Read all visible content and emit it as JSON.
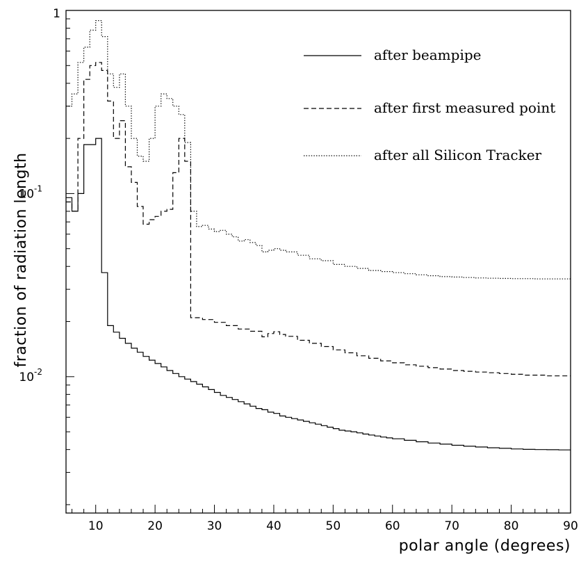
{
  "chart_data": {
    "type": "line",
    "xlabel": "polar angle (degrees)",
    "ylabel": "fraction of radiation length",
    "xlim": [
      5,
      90
    ],
    "ylim": [
      0.0018,
      1
    ],
    "yscale": "log",
    "grid": false,
    "legend_position": "top-right",
    "x_ticks": [
      {
        "value": 10,
        "label": "10"
      },
      {
        "value": 20,
        "label": "20"
      },
      {
        "value": 30,
        "label": "30"
      },
      {
        "value": 40,
        "label": "40"
      },
      {
        "value": 50,
        "label": "50"
      },
      {
        "value": 60,
        "label": "60"
      },
      {
        "value": 70,
        "label": "70"
      },
      {
        "value": 80,
        "label": "80"
      },
      {
        "value": 90,
        "label": "90"
      }
    ],
    "y_tick_labels": [
      {
        "value": 1,
        "base": "1",
        "exp": ""
      },
      {
        "value": 0.1,
        "base": "10",
        "exp": "-1"
      },
      {
        "value": 0.01,
        "base": "10",
        "exp": "-2"
      }
    ],
    "series": [
      {
        "name": "after beampipe",
        "style": "solid",
        "points": [
          [
            5,
            0.095
          ],
          [
            6,
            0.08
          ],
          [
            7,
            0.1
          ],
          [
            8,
            0.185
          ],
          [
            10,
            0.2
          ],
          [
            11,
            0.037
          ],
          [
            12,
            0.019
          ],
          [
            13,
            0.0175
          ],
          [
            14,
            0.0162
          ],
          [
            15,
            0.0152
          ],
          [
            16,
            0.0143
          ],
          [
            17,
            0.0136
          ],
          [
            18,
            0.0129
          ],
          [
            19,
            0.0123
          ],
          [
            20,
            0.0118
          ],
          [
            21,
            0.0113
          ],
          [
            22,
            0.0108
          ],
          [
            23,
            0.0104
          ],
          [
            24,
            0.01
          ],
          [
            25,
            0.0097
          ],
          [
            26,
            0.0094
          ],
          [
            27,
            0.0091
          ],
          [
            28,
            0.0088
          ],
          [
            29,
            0.0085
          ],
          [
            30,
            0.0082
          ],
          [
            31,
            0.0079
          ],
          [
            32,
            0.0077
          ],
          [
            33,
            0.0075
          ],
          [
            34,
            0.0073
          ],
          [
            35,
            0.0071
          ],
          [
            36,
            0.0069
          ],
          [
            37,
            0.0067
          ],
          [
            38,
            0.0066
          ],
          [
            39,
            0.0064
          ],
          [
            40,
            0.0063
          ],
          [
            41,
            0.0061
          ],
          [
            42,
            0.006
          ],
          [
            43,
            0.0059
          ],
          [
            44,
            0.0058
          ],
          [
            45,
            0.0057
          ],
          [
            46,
            0.0056
          ],
          [
            47,
            0.0055
          ],
          [
            48,
            0.0054
          ],
          [
            49,
            0.0053
          ],
          [
            50,
            0.0052
          ],
          [
            51,
            0.0051
          ],
          [
            52,
            0.00505
          ],
          [
            53,
            0.005
          ],
          [
            54,
            0.00493
          ],
          [
            55,
            0.00486
          ],
          [
            56,
            0.0048
          ],
          [
            57,
            0.00474
          ],
          [
            58,
            0.00468
          ],
          [
            59,
            0.00463
          ],
          [
            60,
            0.00458
          ],
          [
            62,
            0.00449
          ],
          [
            64,
            0.00441
          ],
          [
            66,
            0.00434
          ],
          [
            68,
            0.00428
          ],
          [
            70,
            0.00422
          ],
          [
            72,
            0.00417
          ],
          [
            74,
            0.00413
          ],
          [
            76,
            0.00409
          ],
          [
            78,
            0.00406
          ],
          [
            80,
            0.00403
          ],
          [
            82,
            0.00401
          ],
          [
            84,
            0.004
          ],
          [
            86,
            0.00399
          ],
          [
            88,
            0.00398
          ],
          [
            90,
            0.00398
          ]
        ]
      },
      {
        "name": "after first measured point",
        "style": "dashed",
        "points": [
          [
            5,
            0.09
          ],
          [
            6,
            0.08
          ],
          [
            7,
            0.2
          ],
          [
            8,
            0.42
          ],
          [
            9,
            0.5
          ],
          [
            10,
            0.52
          ],
          [
            11,
            0.47
          ],
          [
            12,
            0.32
          ],
          [
            13,
            0.2
          ],
          [
            14,
            0.25
          ],
          [
            15,
            0.14
          ],
          [
            16,
            0.115
          ],
          [
            17,
            0.085
          ],
          [
            18,
            0.068
          ],
          [
            19,
            0.072
          ],
          [
            20,
            0.075
          ],
          [
            21,
            0.08
          ],
          [
            22,
            0.082
          ],
          [
            23,
            0.13
          ],
          [
            24,
            0.2
          ],
          [
            25,
            0.15
          ],
          [
            26,
            0.021
          ],
          [
            28,
            0.0205
          ],
          [
            30,
            0.0198
          ],
          [
            32,
            0.019
          ],
          [
            34,
            0.0182
          ],
          [
            36,
            0.0177
          ],
          [
            38,
            0.0165
          ],
          [
            39,
            0.0172
          ],
          [
            40,
            0.0176
          ],
          [
            41,
            0.017
          ],
          [
            42,
            0.0166
          ],
          [
            44,
            0.0158
          ],
          [
            46,
            0.0152
          ],
          [
            48,
            0.0146
          ],
          [
            50,
            0.014
          ],
          [
            52,
            0.0135
          ],
          [
            54,
            0.013
          ],
          [
            56,
            0.0126
          ],
          [
            58,
            0.0122
          ],
          [
            60,
            0.0119
          ],
          [
            62,
            0.0116
          ],
          [
            64,
            0.0114
          ],
          [
            66,
            0.0112
          ],
          [
            68,
            0.011
          ],
          [
            70,
            0.0108
          ],
          [
            72,
            0.0107
          ],
          [
            74,
            0.0106
          ],
          [
            76,
            0.0105
          ],
          [
            78,
            0.0104
          ],
          [
            80,
            0.0103
          ],
          [
            82,
            0.0102
          ],
          [
            84,
            0.0102
          ],
          [
            86,
            0.0101
          ],
          [
            88,
            0.0101
          ],
          [
            90,
            0.0101
          ]
        ]
      },
      {
        "name": "after all Silicon Tracker",
        "style": "dotted",
        "points": [
          [
            5,
            0.3
          ],
          [
            6,
            0.35
          ],
          [
            7,
            0.52
          ],
          [
            8,
            0.63
          ],
          [
            9,
            0.78
          ],
          [
            10,
            0.88
          ],
          [
            11,
            0.72
          ],
          [
            12,
            0.45
          ],
          [
            13,
            0.38
          ],
          [
            14,
            0.45
          ],
          [
            15,
            0.3
          ],
          [
            16,
            0.2
          ],
          [
            17,
            0.16
          ],
          [
            18,
            0.15
          ],
          [
            19,
            0.2
          ],
          [
            20,
            0.3
          ],
          [
            21,
            0.35
          ],
          [
            22,
            0.33
          ],
          [
            23,
            0.3
          ],
          [
            24,
            0.27
          ],
          [
            25,
            0.19
          ],
          [
            26,
            0.08
          ],
          [
            27,
            0.066
          ],
          [
            28,
            0.067
          ],
          [
            29,
            0.064
          ],
          [
            30,
            0.062
          ],
          [
            31,
            0.063
          ],
          [
            32,
            0.06
          ],
          [
            33,
            0.058
          ],
          [
            34,
            0.055
          ],
          [
            35,
            0.056
          ],
          [
            36,
            0.054
          ],
          [
            37,
            0.052
          ],
          [
            38,
            0.048
          ],
          [
            39,
            0.049
          ],
          [
            40,
            0.05
          ],
          [
            41,
            0.049
          ],
          [
            42,
            0.048
          ],
          [
            44,
            0.046
          ],
          [
            46,
            0.044
          ],
          [
            48,
            0.043
          ],
          [
            50,
            0.041
          ],
          [
            52,
            0.04
          ],
          [
            54,
            0.039
          ],
          [
            56,
            0.038
          ],
          [
            58,
            0.0375
          ],
          [
            60,
            0.037
          ],
          [
            62,
            0.0365
          ],
          [
            64,
            0.036
          ],
          [
            66,
            0.0356
          ],
          [
            68,
            0.0352
          ],
          [
            70,
            0.035
          ],
          [
            72,
            0.0348
          ],
          [
            74,
            0.0346
          ],
          [
            76,
            0.0345
          ],
          [
            78,
            0.0344
          ],
          [
            80,
            0.0343
          ],
          [
            82,
            0.0343
          ],
          [
            84,
            0.0342
          ],
          [
            86,
            0.0342
          ],
          [
            88,
            0.0342
          ],
          [
            90,
            0.0342
          ]
        ]
      }
    ]
  }
}
